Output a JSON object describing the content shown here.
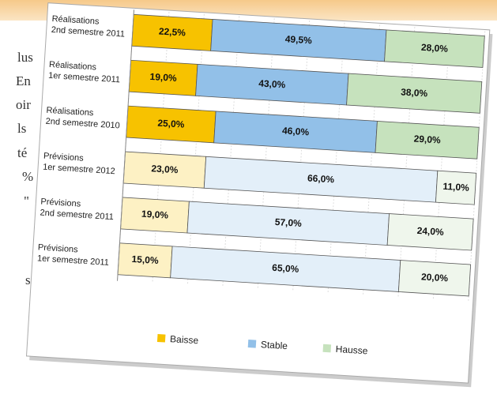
{
  "background_text": [
    "lus",
    "En",
    "oir",
    "ls",
    "té",
    "%",
    "\"",
    "s"
  ],
  "chart_data": {
    "type": "stacked-bar",
    "categories": [
      [
        "Réalisations",
        "2nd semestre 2011"
      ],
      [
        "Réalisations",
        "1er semestre 2011"
      ],
      [
        "Réalisations",
        "2nd semestre 2010"
      ],
      [
        "Prévisions",
        "1er semestre 2012"
      ],
      [
        "Prévisions",
        "2nd semestre 2011"
      ],
      [
        "Prévisions",
        "1er semestre 2011"
      ]
    ],
    "series": [
      {
        "name": "Baisse",
        "color": "#f7c200",
        "colors": [
          "#f7c200",
          "#f7c200",
          "#f7c200",
          "#fdf1c4",
          "#fdf1c4",
          "#fdf1c4"
        ],
        "values": [
          22.5,
          19.0,
          25.0,
          23.0,
          19.0,
          15.0
        ],
        "value_labels": [
          "22,5%",
          "19,0%",
          "25,0%",
          "23,0%",
          "19,0%",
          "15,0%"
        ]
      },
      {
        "name": "Stable",
        "color": "#92c0e8",
        "colors": [
          "#92c0e8",
          "#92c0e8",
          "#92c0e8",
          "#e3eff9",
          "#e3eff9",
          "#e3eff9"
        ],
        "values": [
          49.5,
          43.0,
          46.0,
          66.0,
          57.0,
          65.0
        ],
        "value_labels": [
          "49,5%",
          "43,0%",
          "46,0%",
          "66,0%",
          "57,0%",
          "65,0%"
        ]
      },
      {
        "name": "Hausse",
        "color": "#c6e2bd",
        "colors": [
          "#c6e2bd",
          "#c6e2bd",
          "#c6e2bd",
          "#eff6ec",
          "#eff6ec",
          "#eff6ec"
        ],
        "values": [
          28.0,
          38.0,
          29.0,
          11.0,
          24.0,
          20.0
        ],
        "value_labels": [
          "28,0%",
          "38,0%",
          "29,0%",
          "11,0%",
          "24,0%",
          "20,0%"
        ]
      }
    ],
    "xlim": [
      0,
      100
    ],
    "xticks": [
      0,
      10,
      20,
      30,
      40,
      50,
      60,
      70,
      80,
      90,
      100
    ],
    "grid": true
  }
}
